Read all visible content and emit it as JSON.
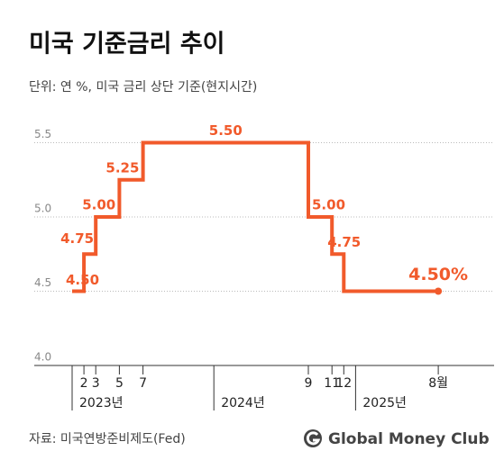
{
  "chart_data": {
    "type": "step",
    "title": "미국 기준금리 추이",
    "subtitle": "단위: 연 %, 미국 금리 상단 기준(현지시간)",
    "source": "자료: 미국연방준비제도(Fed)",
    "brand": "Global Money Club",
    "x": [
      "2023-01",
      "2023-02",
      "2023-03",
      "2023-05",
      "2023-07",
      "2024-09",
      "2024-11",
      "2024-12",
      "2025-08"
    ],
    "values": [
      4.5,
      4.75,
      5.0,
      5.25,
      5.5,
      5.0,
      4.75,
      4.5,
      4.5
    ],
    "value_labels": [
      "4.50",
      "4.75",
      "5.00",
      "5.25",
      "5.50",
      "5.00",
      "4.75",
      null,
      "4.50%"
    ],
    "color": "#f15a2b",
    "xlim": [
      "2023-01",
      "2025-12"
    ],
    "xticks": [
      {
        "value": "2023-02",
        "label": "2"
      },
      {
        "value": "2023-03",
        "label": "3"
      },
      {
        "value": "2023-05",
        "label": "5"
      },
      {
        "value": "2023-07",
        "label": "7"
      },
      {
        "value": "2024-09",
        "label": "9"
      },
      {
        "value": "2024-11",
        "label": "11"
      },
      {
        "value": "2024-12",
        "label": "12"
      },
      {
        "value": "2025-08",
        "label": "8월"
      }
    ],
    "year_groups": [
      {
        "value": "2023-01",
        "label": "2023년"
      },
      {
        "value": "2024-01",
        "label": "2024년"
      },
      {
        "value": "2025-01",
        "label": "2025년"
      }
    ],
    "ylim": [
      4.0,
      5.6
    ],
    "yticks": [
      {
        "value": 4.0,
        "label": "4.0"
      },
      4.5,
      {
        "value": 5.0,
        "label": "5.0"
      },
      5.5
    ],
    "grid": true
  }
}
